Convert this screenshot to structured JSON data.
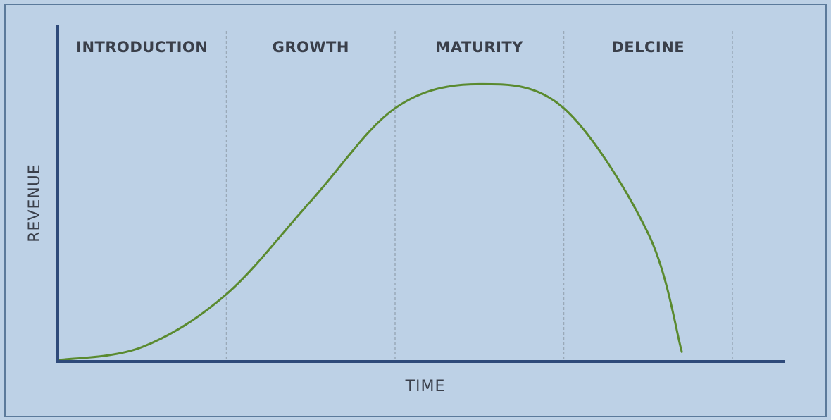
{
  "chart_data": {
    "type": "line",
    "title": "",
    "xlabel": "TIME",
    "ylabel": "REVENUE",
    "stages": [
      {
        "label": "INTRODUCTION"
      },
      {
        "label": "GROWTH"
      },
      {
        "label": "MATURITY"
      },
      {
        "label": "DELCINE"
      }
    ],
    "xlim": [
      0,
      4.3
    ],
    "ylim": [
      0,
      1
    ],
    "grid": false,
    "series": [
      {
        "name": "",
        "color": "#5a8a2f",
        "points": [
          [
            0.0,
            0.004
          ],
          [
            0.5,
            0.045
          ],
          [
            1.0,
            0.21
          ],
          [
            1.5,
            0.5
          ],
          [
            2.0,
            0.79
          ],
          [
            2.5,
            0.865
          ],
          [
            3.0,
            0.79
          ],
          [
            3.5,
            0.4
          ],
          [
            3.7,
            0.03
          ]
        ]
      }
    ],
    "colors": {
      "background": "#bdd1e6",
      "border": "#5b7a9b",
      "axis": "#2e4a7a",
      "divider": "#9aa9b8",
      "text": "#3a3f4a"
    }
  }
}
